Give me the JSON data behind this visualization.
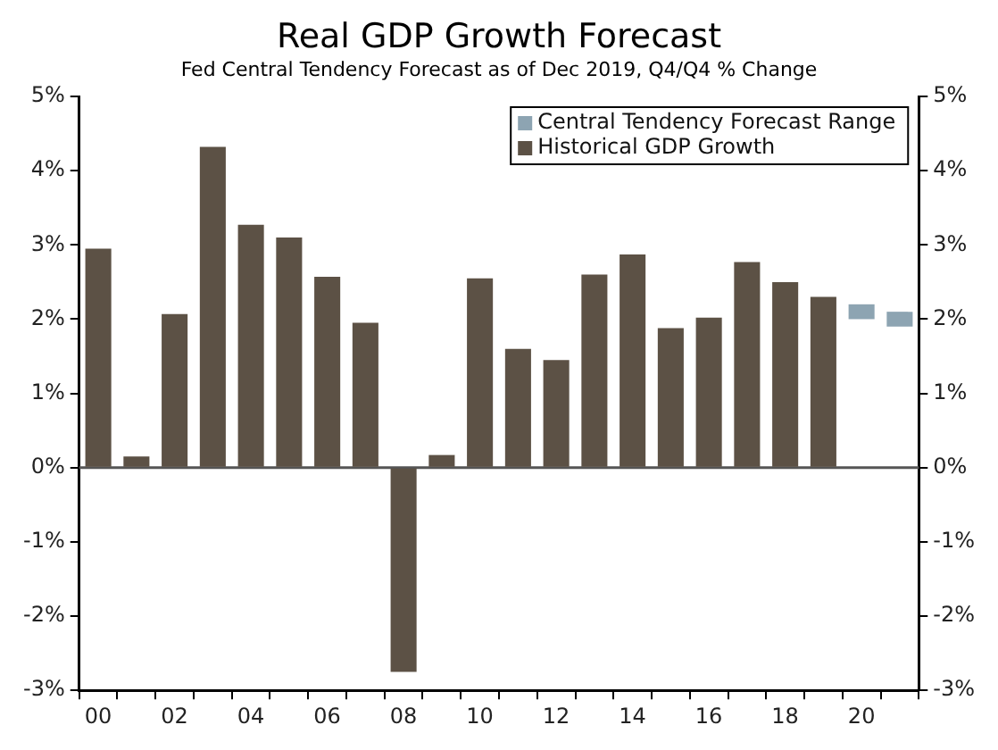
{
  "chart_data": {
    "type": "bar",
    "title": "Real GDP Growth Forecast",
    "subtitle": "Fed Central Tendency Forecast as of Dec 2019, Q4/Q4 % Change",
    "categories": [
      "00",
      null,
      "02",
      null,
      "04",
      null,
      "06",
      null,
      "08",
      null,
      "10",
      null,
      "12",
      null,
      "14",
      null,
      "16",
      null,
      "18",
      null,
      "20",
      null
    ],
    "series": [
      {
        "name": "Central Tendency Forecast Range",
        "color": "#8da4b2",
        "values": [
          null,
          null,
          null,
          null,
          null,
          null,
          null,
          null,
          null,
          null,
          null,
          null,
          null,
          null,
          null,
          null,
          null,
          null,
          null,
          null,
          0.2,
          0.2
        ],
        "base": [
          null,
          null,
          null,
          null,
          null,
          null,
          null,
          null,
          null,
          null,
          null,
          null,
          null,
          null,
          null,
          null,
          null,
          null,
          null,
          null,
          2.0,
          1.9
        ]
      },
      {
        "name": "Historical GDP Growth",
        "color": "#5c5145",
        "values": [
          2.95,
          0.15,
          2.07,
          4.32,
          3.27,
          3.1,
          2.57,
          1.95,
          -2.75,
          0.17,
          2.55,
          1.6,
          1.45,
          2.6,
          2.87,
          1.88,
          2.02,
          2.77,
          2.5,
          2.3,
          null,
          null
        ]
      }
    ],
    "ylim": [
      -3,
      5
    ],
    "yticks": [
      {
        "value": -3,
        "label": "-3%"
      },
      {
        "value": -2,
        "label": "-2%"
      },
      {
        "value": -1,
        "label": "-1%"
      },
      {
        "value": 0,
        "label": "0%"
      },
      {
        "value": 1,
        "label": "1%"
      },
      {
        "value": 2,
        "label": "2%"
      },
      {
        "value": 3,
        "label": "3%"
      },
      {
        "value": 4,
        "label": "4%"
      },
      {
        "value": 5,
        "label": "5%"
      }
    ],
    "y2lim": [
      -3,
      5
    ],
    "y2ticks": [
      {
        "value": -3,
        "label": "-3%"
      },
      {
        "value": -2,
        "label": "-2%"
      },
      {
        "value": -1,
        "label": "-1%"
      },
      {
        "value": 0,
        "label": "0%"
      },
      {
        "value": 1,
        "label": "1%"
      },
      {
        "value": 2,
        "label": "2%"
      },
      {
        "value": 3,
        "label": "3%"
      },
      {
        "value": 4,
        "label": "4%"
      },
      {
        "value": 5,
        "label": "5%"
      }
    ],
    "ref_lines": [
      {
        "axis": "y",
        "value": 0,
        "color": "#555555"
      }
    ],
    "legend": "top right",
    "grid": false
  }
}
